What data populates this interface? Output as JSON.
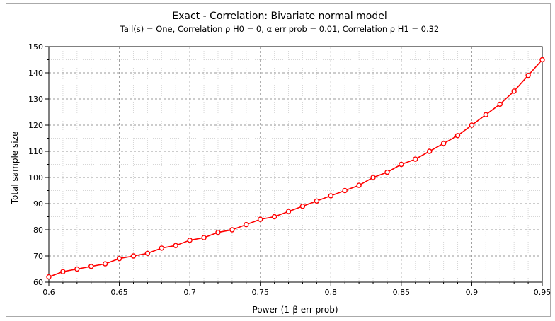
{
  "chart_data": {
    "type": "line",
    "title": "Exact - Correlation: Bivariate normal model",
    "subtitle": "Tail(s) = One, Correlation ρ H0 = 0, α err prob = 0.01, Correlation ρ H1 = 0.32",
    "xlabel": "Power (1-β err prob)",
    "ylabel": "Total sample size",
    "xlim": [
      0.6,
      0.95
    ],
    "ylim": [
      60,
      150
    ],
    "xticks": [
      "0.6",
      "0.65",
      "0.7",
      "0.75",
      "0.8",
      "0.85",
      "0.9",
      "0.95"
    ],
    "yticks": [
      "60",
      "70",
      "80",
      "90",
      "100",
      "110",
      "120",
      "130",
      "140",
      "150"
    ],
    "grid": true,
    "series": [
      {
        "color": "#ff0000",
        "x": [
          0.6,
          0.61,
          0.62,
          0.63,
          0.64,
          0.65,
          0.66,
          0.67,
          0.68,
          0.69,
          0.7,
          0.71,
          0.72,
          0.73,
          0.74,
          0.75,
          0.76,
          0.77,
          0.78,
          0.79,
          0.8,
          0.81,
          0.82,
          0.83,
          0.84,
          0.85,
          0.86,
          0.87,
          0.88,
          0.89,
          0.9,
          0.91,
          0.92,
          0.93,
          0.94,
          0.95
        ],
        "y": [
          62,
          64,
          65,
          66,
          67,
          69,
          70,
          71,
          73,
          74,
          76,
          77,
          79,
          80,
          82,
          84,
          85,
          87,
          89,
          91,
          93,
          95,
          97,
          100,
          102,
          105,
          107,
          110,
          113,
          116,
          120,
          124,
          128,
          133,
          139,
          145
        ]
      }
    ]
  }
}
